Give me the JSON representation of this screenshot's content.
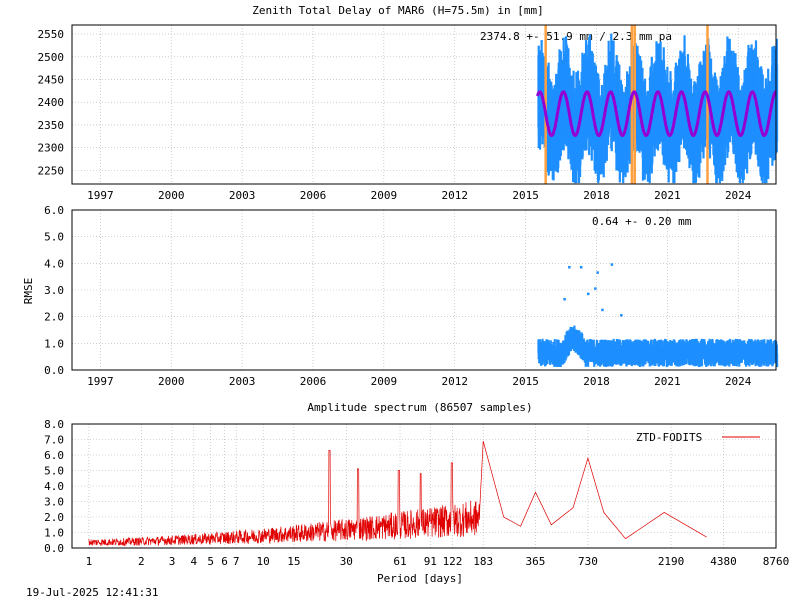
{
  "chart_data": [
    {
      "type": "scatter",
      "title": "Zenith Total Delay of MAR6 (H=75.5m) in [mm]",
      "annotation": "2374.8 +-  51.9 mm /  2.3 mm pa",
      "xlim": [
        1995.8,
        2025.6
      ],
      "ylim": [
        2220,
        2570
      ],
      "x_ticks": [
        "1997",
        "2000",
        "2003",
        "2006",
        "2009",
        "2012",
        "2015",
        "2018",
        "2021",
        "2024"
      ],
      "y_ticks": [
        "2550",
        "2500",
        "2450",
        "2400",
        "2350",
        "2300",
        "2250"
      ],
      "grid": true,
      "series": [
        {
          "color": "#1e8fff",
          "data_start": 2015.5,
          "data_end": 2025.6,
          "mean": 2374.8,
          "amplitude": 80
        },
        {
          "color": "#9400d3",
          "model_mean": 2374.8,
          "model_amplitude": 48,
          "period_years": 1.0
        }
      ],
      "event_lines": {
        "color": "#ffa040",
        "x": [
          2015.85,
          2019.5,
          2019.62,
          2022.7
        ]
      }
    },
    {
      "type": "scatter",
      "ylabel": "RMSE",
      "annotation": "0.64 +-  0.20 mm",
      "xlim": [
        1995.8,
        2025.6
      ],
      "ylim": [
        0,
        6
      ],
      "x_ticks": [
        "1997",
        "2000",
        "2003",
        "2006",
        "2009",
        "2012",
        "2015",
        "2018",
        "2021",
        "2024"
      ],
      "y_ticks": [
        "6.0",
        "5.0",
        "4.0",
        "3.0",
        "2.0",
        "1.0",
        "0.0"
      ],
      "grid": true,
      "series": [
        {
          "color": "#1e8fff",
          "data_start": 2015.5,
          "data_end": 2025.6,
          "mean": 0.64,
          "sd": 0.2,
          "outliers": [
            [
              2016.8,
              3.9
            ],
            [
              2017.3,
              3.9
            ],
            [
              2018.0,
              3.7
            ],
            [
              2018.6,
              4.0
            ],
            [
              2017.6,
              2.9
            ],
            [
              2018.2,
              2.3
            ],
            [
              2019.0,
              2.1
            ],
            [
              2016.6,
              2.7
            ],
            [
              2017.9,
              3.1
            ]
          ]
        }
      ]
    },
    {
      "type": "line",
      "title": "Amplitude spectrum (86507 samples)",
      "xlabel": "Period [days]",
      "legend": "ZTD-FODITS",
      "legend_position": "top-right",
      "color": "#e00000",
      "x_scale": "log",
      "xlim": [
        0.8,
        8760
      ],
      "ylim": [
        0,
        8
      ],
      "x_ticks": [
        "1",
        "2",
        "3",
        "4",
        "5",
        "6",
        "7",
        "10",
        "15",
        "30",
        "61",
        "91",
        "122",
        "183",
        "365",
        "730",
        "2190",
        "4380",
        "8760"
      ],
      "y_ticks": [
        "8.0",
        "7.0",
        "6.0",
        "5.0",
        "4.0",
        "3.0",
        "2.0",
        "1.0",
        "0.0"
      ],
      "grid": true,
      "peaks": [
        [
          183,
          6.9
        ],
        [
          730,
          5.8
        ],
        [
          365,
          3.6
        ],
        [
          121,
          5.5
        ],
        [
          24,
          6.3
        ],
        [
          35,
          5.1
        ],
        [
          60,
          5.0
        ],
        [
          80,
          4.8
        ],
        [
          240,
          2.0
        ],
        [
          300,
          1.4
        ],
        [
          450,
          1.5
        ],
        [
          600,
          2.6
        ],
        [
          900,
          2.3
        ],
        [
          1200,
          0.6
        ],
        [
          2000,
          2.3
        ],
        [
          3500,
          0.7
        ]
      ]
    }
  ],
  "footer": {
    "timestamp": "19-Jul-2025 12:41:31"
  }
}
